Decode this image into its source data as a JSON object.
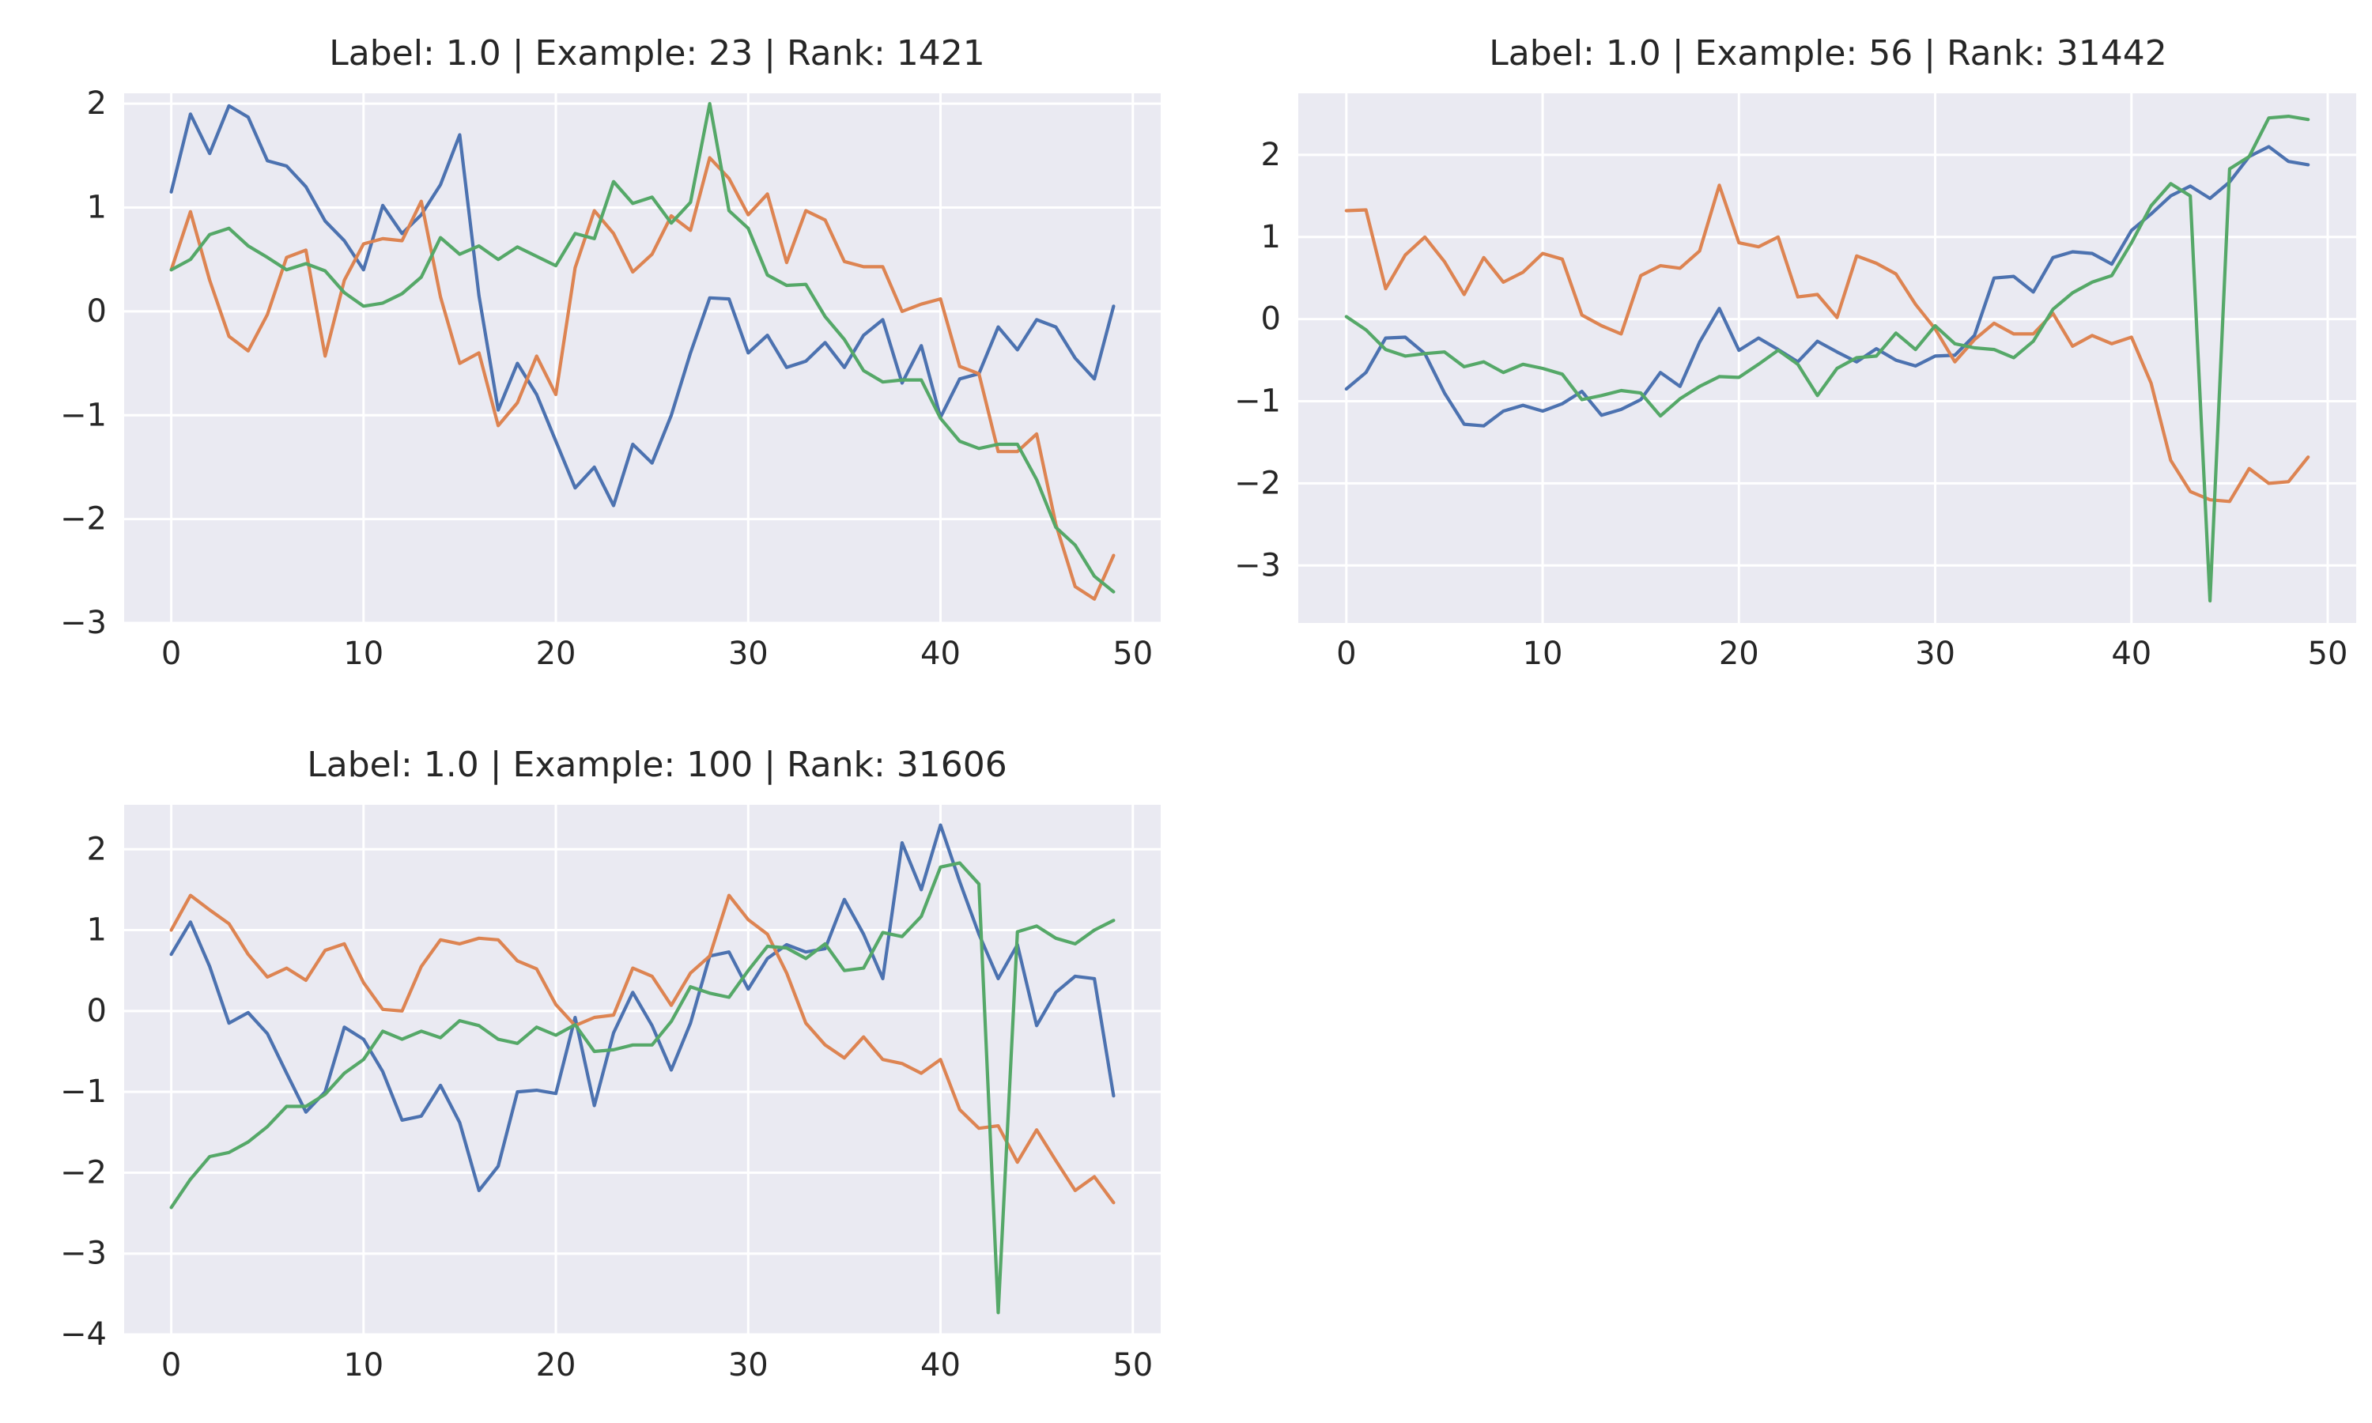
{
  "figure": {
    "background": "#ffffff",
    "axes_background": "#eaeaf2",
    "grid_color": "#ffffff",
    "text_color": "#262626"
  },
  "series_colors": [
    "#4c72b0",
    "#dd8452",
    "#55a868"
  ],
  "chart_data": [
    {
      "type": "line",
      "title": "Label: 1.0 | Example: 23 | Rank: 1421",
      "xlabel": "",
      "ylabel": "",
      "xlim": [
        -2.45,
        51.45
      ],
      "ylim": [
        -3.0,
        2.1
      ],
      "xticks": [
        0,
        10,
        20,
        30,
        40,
        50
      ],
      "yticks": [
        -3,
        -2,
        -1,
        0,
        1,
        2
      ],
      "grid": true,
      "legend": "none",
      "x": [
        0,
        1,
        2,
        3,
        4,
        5,
        6,
        7,
        8,
        9,
        10,
        11,
        12,
        13,
        14,
        15,
        16,
        17,
        18,
        19,
        20,
        21,
        22,
        23,
        24,
        25,
        26,
        27,
        28,
        29,
        30,
        31,
        32,
        33,
        34,
        35,
        36,
        37,
        38,
        39,
        40,
        41,
        42,
        43,
        44,
        45,
        46,
        47,
        48,
        49
      ],
      "series": [
        {
          "color": "#4c72b0",
          "values": [
            1.15,
            1.9,
            1.52,
            1.98,
            1.87,
            1.45,
            1.4,
            1.2,
            0.87,
            0.68,
            0.4,
            1.02,
            0.75,
            0.93,
            1.22,
            1.7,
            0.15,
            -0.95,
            -0.5,
            -0.8,
            -1.25,
            -1.7,
            -1.5,
            -1.87,
            -1.28,
            -1.46,
            -1.0,
            -0.4,
            0.13,
            0.12,
            -0.4,
            -0.23,
            -0.54,
            -0.48,
            -0.3,
            -0.54,
            -0.23,
            -0.08,
            -0.69,
            -0.33,
            -1.02,
            -0.65,
            -0.6,
            -0.15,
            -0.37,
            -0.08,
            -0.15,
            -0.45,
            -0.65,
            0.05
          ]
        },
        {
          "color": "#dd8452",
          "values": [
            0.4,
            0.96,
            0.3,
            -0.24,
            -0.38,
            -0.03,
            0.52,
            0.59,
            -0.43,
            0.3,
            0.65,
            0.7,
            0.68,
            1.06,
            0.14,
            -0.5,
            -0.4,
            -1.1,
            -0.88,
            -0.43,
            -0.8,
            0.42,
            0.97,
            0.75,
            0.38,
            0.55,
            0.92,
            0.78,
            1.48,
            1.28,
            0.93,
            1.13,
            0.47,
            0.97,
            0.88,
            0.48,
            0.43,
            0.43,
            0.0,
            0.07,
            0.12,
            -0.53,
            -0.6,
            -1.35,
            -1.35,
            -1.18,
            -2.05,
            -2.65,
            -2.77,
            -2.35
          ]
        },
        {
          "color": "#55a868",
          "values": [
            0.4,
            0.5,
            0.74,
            0.8,
            0.63,
            0.52,
            0.4,
            0.46,
            0.39,
            0.18,
            0.05,
            0.08,
            0.17,
            0.33,
            0.71,
            0.55,
            0.63,
            0.5,
            0.62,
            0.53,
            0.44,
            0.75,
            0.7,
            1.25,
            1.04,
            1.1,
            0.85,
            1.05,
            2.0,
            0.97,
            0.8,
            0.35,
            0.25,
            0.26,
            -0.05,
            -0.27,
            -0.57,
            -0.68,
            -0.66,
            -0.66,
            -1.03,
            -1.25,
            -1.32,
            -1.28,
            -1.28,
            -1.62,
            -2.08,
            -2.25,
            -2.55,
            -2.7
          ]
        }
      ]
    },
    {
      "type": "line",
      "title": "Label: 1.0 | Example: 56 | Rank: 31442",
      "xlabel": "",
      "ylabel": "",
      "xlim": [
        -2.45,
        51.45
      ],
      "ylim": [
        -3.7,
        2.75
      ],
      "xticks": [
        0,
        10,
        20,
        30,
        40,
        50
      ],
      "yticks": [
        -3,
        -2,
        -1,
        0,
        1,
        2
      ],
      "grid": true,
      "legend": "none",
      "x": [
        0,
        1,
        2,
        3,
        4,
        5,
        6,
        7,
        8,
        9,
        10,
        11,
        12,
        13,
        14,
        15,
        16,
        17,
        18,
        19,
        20,
        21,
        22,
        23,
        24,
        25,
        26,
        27,
        28,
        29,
        30,
        31,
        32,
        33,
        34,
        35,
        36,
        37,
        38,
        39,
        40,
        41,
        42,
        43,
        44,
        45,
        46,
        47,
        48,
        49
      ],
      "series": [
        {
          "color": "#4c72b0",
          "values": [
            -0.85,
            -0.65,
            -0.23,
            -0.22,
            -0.42,
            -0.9,
            -1.28,
            -1.3,
            -1.12,
            -1.05,
            -1.12,
            -1.03,
            -0.88,
            -1.17,
            -1.1,
            -0.98,
            -0.65,
            -0.82,
            -0.28,
            0.13,
            -0.38,
            -0.23,
            -0.37,
            -0.52,
            -0.27,
            -0.4,
            -0.52,
            -0.36,
            -0.5,
            -0.57,
            -0.45,
            -0.44,
            -0.2,
            0.5,
            0.52,
            0.33,
            0.75,
            0.82,
            0.8,
            0.67,
            1.08,
            1.28,
            1.5,
            1.62,
            1.47,
            1.67,
            1.98,
            2.1,
            1.92,
            1.88
          ]
        },
        {
          "color": "#dd8452",
          "values": [
            1.32,
            1.33,
            0.37,
            0.78,
            1.0,
            0.7,
            0.3,
            0.75,
            0.45,
            0.57,
            0.8,
            0.73,
            0.05,
            -0.08,
            -0.18,
            0.53,
            0.65,
            0.62,
            0.83,
            1.63,
            0.93,
            0.88,
            1.0,
            0.27,
            0.3,
            0.02,
            0.77,
            0.68,
            0.55,
            0.18,
            -0.12,
            -0.52,
            -0.25,
            -0.05,
            -0.18,
            -0.18,
            0.07,
            -0.33,
            -0.2,
            -0.3,
            -0.22,
            -0.78,
            -1.72,
            -2.1,
            -2.2,
            -2.22,
            -1.82,
            -2.0,
            -1.98,
            -1.68
          ]
        },
        {
          "color": "#55a868",
          "values": [
            0.03,
            -0.13,
            -0.37,
            -0.45,
            -0.42,
            -0.4,
            -0.58,
            -0.52,
            -0.65,
            -0.55,
            -0.6,
            -0.67,
            -0.98,
            -0.93,
            -0.87,
            -0.9,
            -1.18,
            -0.97,
            -0.82,
            -0.7,
            -0.71,
            -0.55,
            -0.38,
            -0.55,
            -0.93,
            -0.6,
            -0.47,
            -0.45,
            -0.17,
            -0.37,
            -0.08,
            -0.3,
            -0.35,
            -0.37,
            -0.47,
            -0.27,
            0.12,
            0.32,
            0.45,
            0.53,
            0.93,
            1.38,
            1.65,
            1.5,
            -3.43,
            1.83,
            1.98,
            2.45,
            2.47,
            2.43
          ]
        }
      ]
    },
    {
      "type": "line",
      "title": "Label: 1.0 | Example: 100 | Rank: 31606",
      "xlabel": "",
      "ylabel": "",
      "xlim": [
        -2.45,
        51.45
      ],
      "ylim": [
        -4.0,
        2.55
      ],
      "xticks": [
        0,
        10,
        20,
        30,
        40,
        50
      ],
      "yticks": [
        -4,
        -3,
        -2,
        -1,
        0,
        1,
        2
      ],
      "grid": true,
      "legend": "none",
      "x": [
        0,
        1,
        2,
        3,
        4,
        5,
        6,
        7,
        8,
        9,
        10,
        11,
        12,
        13,
        14,
        15,
        16,
        17,
        18,
        19,
        20,
        21,
        22,
        23,
        24,
        25,
        26,
        27,
        28,
        29,
        30,
        31,
        32,
        33,
        34,
        35,
        36,
        37,
        38,
        39,
        40,
        41,
        42,
        43,
        44,
        45,
        46,
        47,
        48,
        49
      ],
      "series": [
        {
          "color": "#4c72b0",
          "values": [
            0.7,
            1.1,
            0.55,
            -0.15,
            -0.02,
            -0.28,
            -0.77,
            -1.25,
            -1.0,
            -0.2,
            -0.35,
            -0.75,
            -1.35,
            -1.3,
            -0.92,
            -1.38,
            -2.22,
            -1.92,
            -1.0,
            -0.98,
            -1.02,
            -0.08,
            -1.17,
            -0.27,
            0.23,
            -0.18,
            -0.73,
            -0.15,
            0.68,
            0.73,
            0.27,
            0.65,
            0.82,
            0.73,
            0.77,
            1.38,
            0.95,
            0.4,
            2.08,
            1.5,
            2.3,
            1.6,
            0.95,
            0.4,
            0.82,
            -0.18,
            0.23,
            0.43,
            0.4,
            -1.05
          ]
        },
        {
          "color": "#dd8452",
          "values": [
            1.0,
            1.43,
            1.25,
            1.08,
            0.7,
            0.42,
            0.53,
            0.38,
            0.75,
            0.83,
            0.35,
            0.02,
            0.0,
            0.55,
            0.88,
            0.83,
            0.9,
            0.88,
            0.62,
            0.52,
            0.08,
            -0.18,
            -0.08,
            -0.05,
            0.53,
            0.43,
            0.07,
            0.47,
            0.68,
            1.43,
            1.13,
            0.95,
            0.47,
            -0.15,
            -0.42,
            -0.58,
            -0.32,
            -0.6,
            -0.65,
            -0.77,
            -0.6,
            -1.22,
            -1.45,
            -1.42,
            -1.87,
            -1.47,
            -1.85,
            -2.22,
            -2.05,
            -2.37
          ]
        },
        {
          "color": "#55a868",
          "values": [
            -2.43,
            -2.08,
            -1.8,
            -1.75,
            -1.62,
            -1.43,
            -1.18,
            -1.18,
            -1.03,
            -0.77,
            -0.6,
            -0.25,
            -0.35,
            -0.25,
            -0.33,
            -0.12,
            -0.18,
            -0.35,
            -0.4,
            -0.2,
            -0.3,
            -0.17,
            -0.5,
            -0.48,
            -0.42,
            -0.42,
            -0.13,
            0.3,
            0.22,
            0.17,
            0.5,
            0.8,
            0.78,
            0.65,
            0.83,
            0.5,
            0.53,
            0.97,
            0.92,
            1.17,
            1.78,
            1.83,
            1.57,
            -3.73,
            0.98,
            1.05,
            0.9,
            0.83,
            1.0,
            1.12
          ]
        }
      ]
    }
  ]
}
